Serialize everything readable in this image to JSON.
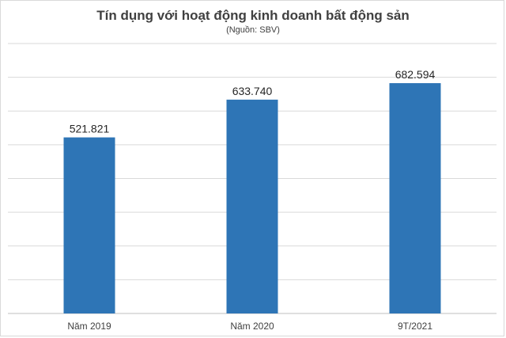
{
  "chart_data": {
    "type": "bar",
    "title": "Tín dụng với hoạt động kinh doanh bất động sản",
    "subtitle": "(Nguồn: SBV)",
    "categories": [
      "Năm 2019",
      "Năm 2020",
      "9T/2021"
    ],
    "values": [
      521821,
      633740,
      682594
    ],
    "data_labels": [
      "521.821",
      "633.740",
      "682.594"
    ],
    "ylim": [
      0,
      800000
    ],
    "grid": true,
    "legend": "none",
    "bar_color": "#2e75b6",
    "grid_color": "#d9d9d9"
  }
}
